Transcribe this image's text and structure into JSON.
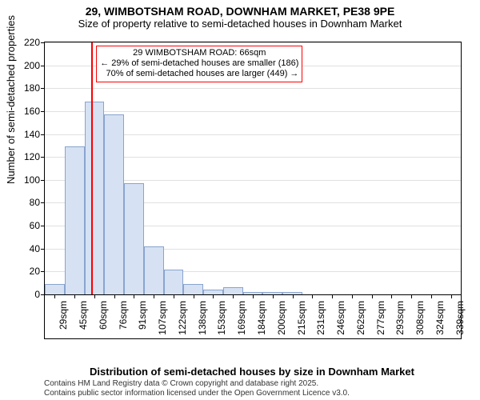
{
  "title": "29, WIMBOTSHAM ROAD, DOWNHAM MARKET, PE38 9PE",
  "subtitle": "Size of property relative to semi-detached houses in Downham Market",
  "y_axis_label": "Number of semi-detached properties",
  "x_axis_label": "Distribution of semi-detached houses by size in Downham Market",
  "footer_line1": "Contains HM Land Registry data © Crown copyright and database right 2025.",
  "footer_line2": "Contains public sector information licensed under the Open Government Licence v3.0.",
  "chart": {
    "type": "histogram",
    "ylim": [
      0,
      220
    ],
    "ytick_step": 20,
    "y_ticks": [
      0,
      20,
      40,
      60,
      80,
      100,
      120,
      140,
      160,
      180,
      200,
      220
    ],
    "x_labels": [
      "29sqm",
      "45sqm",
      "60sqm",
      "76sqm",
      "91sqm",
      "107sqm",
      "122sqm",
      "138sqm",
      "153sqm",
      "169sqm",
      "184sqm",
      "200sqm",
      "215sqm",
      "231sqm",
      "246sqm",
      "262sqm",
      "277sqm",
      "293sqm",
      "308sqm",
      "324sqm",
      "339sqm"
    ],
    "values": [
      9,
      129,
      168,
      157,
      97,
      42,
      22,
      9,
      4,
      6,
      2,
      2,
      2,
      0,
      0,
      0,
      0,
      0,
      0,
      0,
      0
    ],
    "bar_fill": "#d6e1f3",
    "bar_stroke": "#89a4cf",
    "background_color": "#ffffff",
    "grid_color": "#e0e0e0",
    "title_fontsize": 14,
    "subtitle_fontsize": 13,
    "axis_label_fontsize": 13,
    "tick_fontsize": 12,
    "marker": {
      "position_index": 2.35,
      "color": "#ff0000",
      "line1": "29 WIMBOTSHAM ROAD: 66sqm",
      "line2": "← 29% of semi-detached houses are smaller (186)",
      "line3": "70% of semi-detached houses are larger (449) →",
      "box_border": "#ff0000",
      "annotation_fontsize": 11
    }
  }
}
